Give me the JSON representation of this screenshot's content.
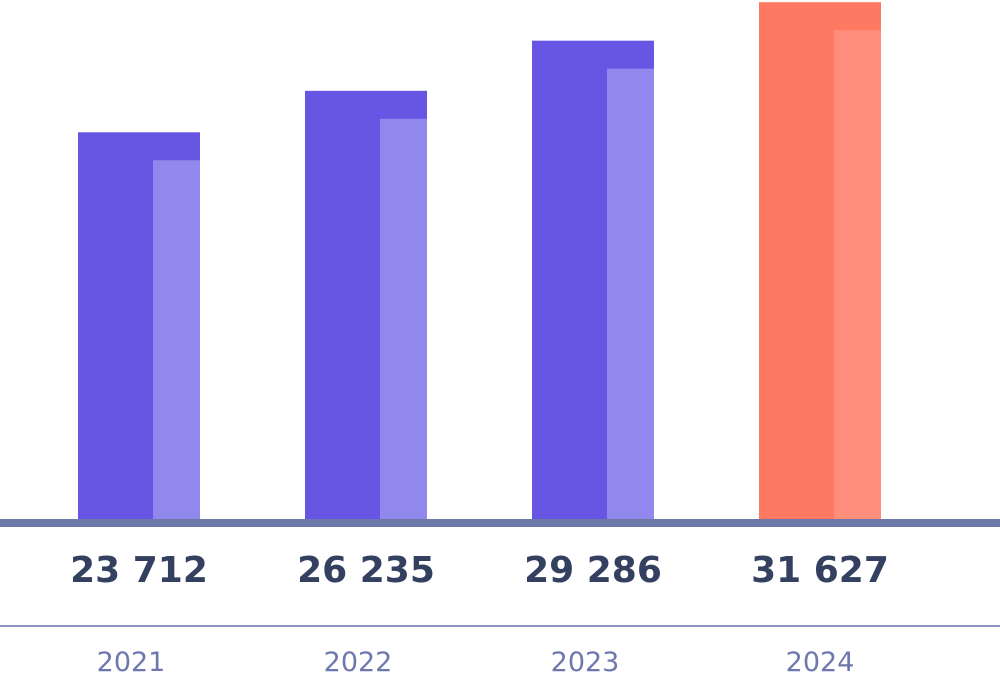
{
  "chart_data": {
    "type": "bar",
    "categories": [
      "2021",
      "2022",
      "2023",
      "2024"
    ],
    "values": [
      23712,
      26235,
      29286,
      31627
    ],
    "value_labels": [
      "23 712",
      "26 235",
      "29 286",
      "31 627"
    ],
    "title": "",
    "xlabel": "",
    "ylabel": "",
    "ylim": [
      0,
      31700
    ],
    "grid": false,
    "legend": "none",
    "highlight_category": "2024",
    "colors": {
      "bar": "#6656e3",
      "bar_light": "#9088ec",
      "highlight": "#ff7862",
      "highlight_light": "#ff8d7c",
      "axis": "#6e78a8",
      "value_text": "#34405f",
      "year_text": "#6e78ae"
    }
  }
}
